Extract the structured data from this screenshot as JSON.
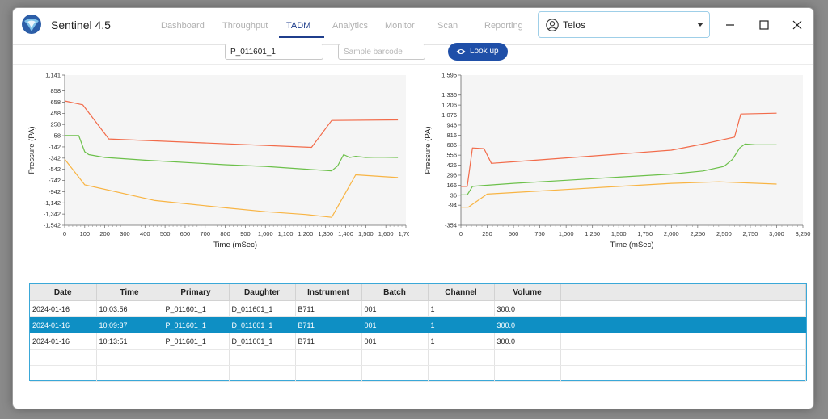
{
  "app": {
    "title": "Sentinel 4.5"
  },
  "nav": {
    "tabs": [
      {
        "label": "Dashboard",
        "active": false
      },
      {
        "label": "Throughput",
        "active": false
      },
      {
        "label": "TADM",
        "active": true
      },
      {
        "label": "Analytics",
        "active": false
      },
      {
        "label": "Monitor",
        "active": false
      },
      {
        "label": "Scan",
        "active": false
      },
      {
        "label": "Reporting",
        "active": false
      }
    ]
  },
  "user": {
    "name": "Telos",
    "icon": "user-circle-icon"
  },
  "window_controls": {
    "minimize": "minimize-icon",
    "maximize": "maximize-icon",
    "close": "close-icon"
  },
  "search": {
    "barcode_value": "P_011601_1",
    "sample_placeholder": "Sample barcode",
    "lookup_label": "Look up",
    "lookup_icon": "eye-icon"
  },
  "colors": {
    "accent": "#1f3e8c",
    "button": "#1f4fa8",
    "selected_row": "#0e8fc4",
    "series_red": "#f26b4a",
    "series_green": "#6cc04a",
    "series_orange": "#f8b443"
  },
  "chart_data": [
    {
      "type": "line",
      "xlabel": "Time (mSec)",
      "ylabel": "Pressure (PA)",
      "xlim": [
        0,
        1700
      ],
      "ylim": [
        -1542,
        1141
      ],
      "xticks": [
        0,
        100,
        200,
        300,
        400,
        500,
        600,
        700,
        800,
        900,
        1000,
        1100,
        1200,
        1300,
        1400,
        1500,
        1600,
        1700
      ],
      "xtick_labels": [
        "0",
        "100",
        "200",
        "300",
        "400",
        "500",
        "600",
        "700",
        "800",
        "900",
        "1,000",
        "1,100",
        "1,200",
        "1,300",
        "1,400",
        "1,500",
        "1,600",
        "1,700"
      ],
      "yticks": [
        1141,
        858,
        658,
        458,
        258,
        58,
        -142,
        -342,
        -542,
        -742,
        -942,
        -1142,
        -1342,
        -1542
      ],
      "ytick_labels": [
        "1,141",
        "858",
        "658",
        "458",
        "258",
        "58",
        "-142",
        "-342",
        "-542",
        "-742",
        "-942",
        "-1,142",
        "-1,342",
        "-1,542"
      ],
      "grid": false,
      "series": [
        {
          "color": "#f26b4a",
          "x": [
            0,
            90,
            220,
            1230,
            1330,
            1660
          ],
          "y": [
            680,
            610,
            0,
            -150,
            330,
            340
          ]
        },
        {
          "color": "#6cc04a",
          "x": [
            0,
            70,
            100,
            120,
            200,
            400,
            800,
            1000,
            1200,
            1330,
            1360,
            1390,
            1420,
            1450,
            1500,
            1560,
            1660
          ],
          "y": [
            60,
            60,
            -230,
            -280,
            -330,
            -380,
            -460,
            -490,
            -540,
            -570,
            -480,
            -280,
            -330,
            -310,
            -330,
            -325,
            -330
          ]
        },
        {
          "color": "#f8b443",
          "x": [
            0,
            100,
            450,
            800,
            1000,
            1200,
            1330,
            1450,
            1660
          ],
          "y": [
            -360,
            -820,
            -1100,
            -1230,
            -1300,
            -1350,
            -1400,
            -640,
            -690
          ]
        }
      ]
    },
    {
      "type": "line",
      "xlabel": "Time (mSec)",
      "ylabel": "Pressure (PA)",
      "xlim": [
        0,
        3250
      ],
      "ylim": [
        -354,
        1595
      ],
      "xticks": [
        0,
        250,
        500,
        750,
        1000,
        1250,
        1500,
        1750,
        2000,
        2250,
        2500,
        2750,
        3000,
        3250
      ],
      "xtick_labels": [
        "0",
        "250",
        "500",
        "750",
        "1,000",
        "1,250",
        "1,500",
        "1,750",
        "2,000",
        "2,250",
        "2,500",
        "2,750",
        "3,000",
        "3,250"
      ],
      "yticks": [
        1595,
        1336,
        1206,
        1076,
        946,
        816,
        686,
        556,
        426,
        296,
        166,
        36,
        -94,
        -354
      ],
      "ytick_labels": [
        "1,595",
        "1,336",
        "1,206",
        "1,076",
        "946",
        "816",
        "686",
        "556",
        "426",
        "296",
        "166",
        "36",
        "-94",
        "-354"
      ],
      "grid": false,
      "series": [
        {
          "color": "#f26b4a",
          "x": [
            0,
            60,
            110,
            220,
            290,
            500,
            1000,
            1500,
            2000,
            2300,
            2600,
            2660,
            3000
          ],
          "y": [
            150,
            150,
            650,
            640,
            450,
            470,
            520,
            570,
            620,
            700,
            790,
            1090,
            1100
          ]
        },
        {
          "color": "#6cc04a",
          "x": [
            0,
            60,
            110,
            200,
            500,
            1000,
            1500,
            2000,
            2300,
            2500,
            2580,
            2650,
            2700,
            2800,
            3000
          ],
          "y": [
            40,
            40,
            150,
            160,
            190,
            230,
            270,
            310,
            350,
            410,
            500,
            650,
            700,
            690,
            690
          ]
        },
        {
          "color": "#f8b443",
          "x": [
            0,
            70,
            250,
            500,
            1000,
            1500,
            2000,
            2450,
            3000
          ],
          "y": [
            -120,
            -120,
            50,
            70,
            110,
            150,
            190,
            210,
            180
          ]
        }
      ]
    }
  ],
  "table": {
    "columns": [
      "Date",
      "Time",
      "Primary",
      "Daughter",
      "Instrument",
      "Batch",
      "Channel",
      "Volume",
      ""
    ],
    "rows": [
      {
        "cells": [
          "2024-01-16",
          "10:03:56",
          "P_011601_1",
          "D_011601_1",
          "B711",
          "001",
          "1",
          "300.0",
          ""
        ],
        "selected": false
      },
      {
        "cells": [
          "2024-01-16",
          "10:09:37",
          "P_011601_1",
          "D_011601_1",
          "B711",
          "001",
          "1",
          "300.0",
          ""
        ],
        "selected": true
      },
      {
        "cells": [
          "2024-01-16",
          "10:13:51",
          "P_011601_1",
          "D_011601_1",
          "B711",
          "001",
          "1",
          "300.0",
          ""
        ],
        "selected": false
      },
      {
        "cells": [
          "",
          "",
          "",
          "",
          "",
          "",
          "",
          "",
          ""
        ],
        "selected": false
      },
      {
        "cells": [
          "",
          "",
          "",
          "",
          "",
          "",
          "",
          "",
          ""
        ],
        "selected": false
      }
    ]
  }
}
